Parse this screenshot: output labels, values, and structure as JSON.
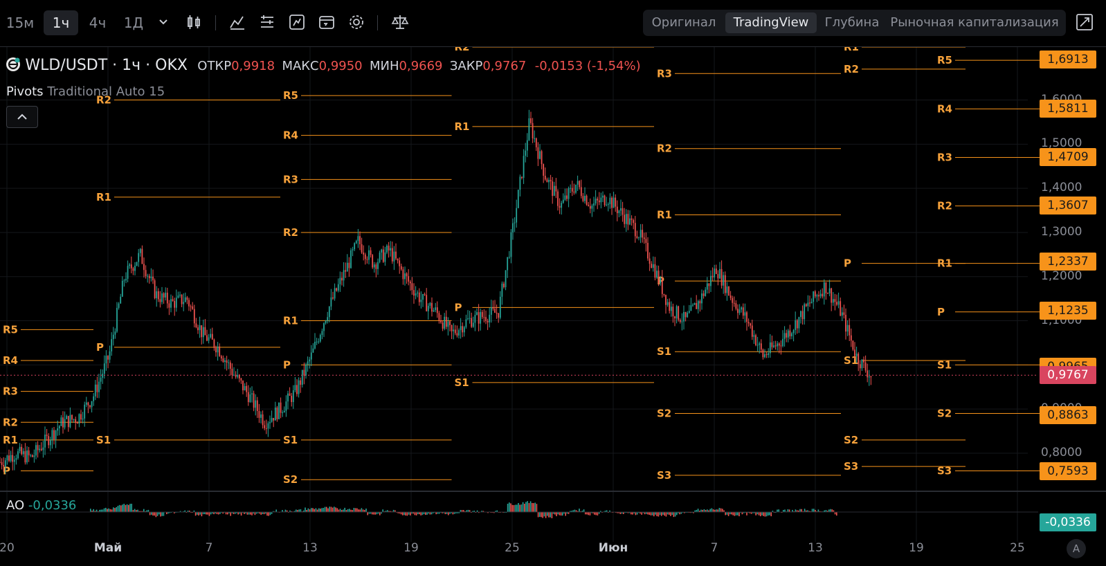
{
  "toolbar": {
    "timeframes": [
      "15м",
      "1ч",
      "4ч",
      "1Д"
    ],
    "active_timeframe": "1ч",
    "tools": [
      "chevron-down-icon",
      "candles-icon",
      "indicators-icon",
      "layout-icon",
      "drawing-icon",
      "replay-icon",
      "gear-icon",
      "scale-icon"
    ],
    "views": [
      "Оригинал",
      "TradingView",
      "Глубина",
      "Рыночная капитализация"
    ],
    "active_view": "TradingView"
  },
  "legend": {
    "symbol": "WLD/USDT · 1ч · OKX",
    "open_label": "ОТКР",
    "open": "0,9918",
    "high_label": "МАКС",
    "high": "0,9950",
    "low_label": "МИН",
    "low": "0,9669",
    "close_label": "ЗАКР",
    "close": "0,9767",
    "change": "-0,0153 (-1,54%)",
    "indicator_name": "Pivots",
    "indicator_params": "Traditional Auto 15"
  },
  "oscillator": {
    "name": "AO",
    "value": "-0,0336"
  },
  "price_axis": {
    "ticks": [
      "1,6000",
      "1,5000",
      "1,4000",
      "1,3000",
      "1,2000",
      "1,1000",
      "0,9000",
      "0,8000"
    ],
    "tags": [
      {
        "text": "1,6913",
        "color": "#f7931a"
      },
      {
        "text": "1,5811",
        "color": "#f7931a"
      },
      {
        "text": "1,4709",
        "color": "#f7931a"
      },
      {
        "text": "1,3607",
        "color": "#f7931a"
      },
      {
        "text": "1,2337",
        "color": "#f7931a"
      },
      {
        "text": "1,1235",
        "color": "#f7931a"
      },
      {
        "text": "0,9965",
        "color": "#f7931a"
      },
      {
        "text": "0,9767",
        "color": "#d9455f"
      },
      {
        "text": "0,8863",
        "color": "#f7931a"
      },
      {
        "text": "0,7593",
        "color": "#f7931a"
      }
    ],
    "ao_tag": {
      "text": "-0,0336",
      "color": "#26a69a"
    }
  },
  "time_axis": {
    "labels": [
      {
        "text": "20",
        "bold": false
      },
      {
        "text": "Май",
        "bold": true
      },
      {
        "text": "7",
        "bold": false
      },
      {
        "text": "13",
        "bold": false
      },
      {
        "text": "19",
        "bold": false
      },
      {
        "text": "25",
        "bold": false
      },
      {
        "text": "Июн",
        "bold": true
      },
      {
        "text": "7",
        "bold": false
      },
      {
        "text": "13",
        "bold": false
      },
      {
        "text": "19",
        "bold": false
      },
      {
        "text": "25",
        "bold": false
      }
    ],
    "auto_label": "A"
  },
  "colors": {
    "up": "#26a69a",
    "down": "#ef5350",
    "pivot": "#f7931a",
    "current_price": "#d9455f"
  },
  "chart_data": {
    "type": "candlestick",
    "symbol": "WLD/USDT",
    "interval": "1ч",
    "ylim": [
      0.72,
      1.72
    ],
    "x_start": "2024-04-20",
    "x_end": "2024-06-25",
    "price_path": [
      [
        "2024-04-20",
        0.78
      ],
      [
        "2024-04-21",
        0.8
      ],
      [
        "2024-04-22",
        0.79
      ],
      [
        "2024-04-23",
        0.83
      ],
      [
        "2024-04-24",
        0.87
      ],
      [
        "2024-04-25",
        0.88
      ],
      [
        "2024-04-26",
        0.93
      ],
      [
        "2024-04-27",
        1.02
      ],
      [
        "2024-04-28",
        1.2
      ],
      [
        "2024-04-29",
        1.25
      ],
      [
        "2024-04-30",
        1.16
      ],
      [
        "2024-05-01",
        1.14
      ],
      [
        "2024-05-02",
        1.15
      ],
      [
        "2024-05-03",
        1.07
      ],
      [
        "2024-05-04",
        1.04
      ],
      [
        "2024-05-05",
        0.98
      ],
      [
        "2024-05-06",
        0.93
      ],
      [
        "2024-05-07",
        0.87
      ],
      [
        "2024-05-08",
        0.9
      ],
      [
        "2024-05-09",
        0.94
      ],
      [
        "2024-05-10",
        1.02
      ],
      [
        "2024-05-11",
        1.12
      ],
      [
        "2024-05-12",
        1.2
      ],
      [
        "2024-05-13",
        1.28
      ],
      [
        "2024-05-14",
        1.23
      ],
      [
        "2024-05-15",
        1.26
      ],
      [
        "2024-05-16",
        1.2
      ],
      [
        "2024-05-17",
        1.15
      ],
      [
        "2024-05-18",
        1.12
      ],
      [
        "2024-05-19",
        1.07
      ],
      [
        "2024-05-20",
        1.1
      ],
      [
        "2024-05-21",
        1.11
      ],
      [
        "2024-05-22",
        1.12
      ],
      [
        "2024-05-23",
        1.32
      ],
      [
        "2024-05-24",
        1.55
      ],
      [
        "2024-05-25",
        1.43
      ],
      [
        "2024-05-26",
        1.36
      ],
      [
        "2024-05-27",
        1.41
      ],
      [
        "2024-05-28",
        1.36
      ],
      [
        "2024-05-29",
        1.38
      ],
      [
        "2024-05-30",
        1.34
      ],
      [
        "2024-05-31",
        1.3
      ],
      [
        "2024-06-01",
        1.22
      ],
      [
        "2024-06-02",
        1.13
      ],
      [
        "2024-06-03",
        1.1
      ],
      [
        "2024-06-04",
        1.15
      ],
      [
        "2024-06-05",
        1.22
      ],
      [
        "2024-06-06",
        1.15
      ],
      [
        "2024-06-07",
        1.1
      ],
      [
        "2024-06-08",
        1.02
      ],
      [
        "2024-06-09",
        1.05
      ],
      [
        "2024-06-10",
        1.09
      ],
      [
        "2024-06-11",
        1.14
      ],
      [
        "2024-06-12",
        1.18
      ],
      [
        "2024-06-13",
        1.12
      ],
      [
        "2024-06-14",
        1.02
      ],
      [
        "2024-06-15",
        0.97
      ]
    ],
    "pivot_levels": [
      {
        "start": "2024-04-20",
        "end": "2024-04-26",
        "levels": {
          "R5": 1.08,
          "R4": 1.01,
          "R3": 0.94,
          "R2": 0.87,
          "R1": 0.83,
          "P": 0.76
        }
      },
      {
        "start": "2024-04-26",
        "end": "2024-05-08",
        "levels": {
          "R2": 1.6,
          "R1": 1.38,
          "P": 1.04,
          "S1": 0.83
        }
      },
      {
        "start": "2024-05-08",
        "end": "2024-05-19",
        "levels": {
          "R5": 1.61,
          "R4": 1.52,
          "R3": 1.42,
          "R2": 1.3,
          "R1": 1.1,
          "P": 1.0,
          "S1": 0.83,
          "S2": 0.74
        }
      },
      {
        "start": "2024-05-19",
        "end": "2024-06-01",
        "levels": {
          "R2": 1.72,
          "R1": 1.54,
          "P": 1.13,
          "S1": 0.96
        }
      },
      {
        "start": "2024-06-01",
        "end": "2024-06-13",
        "levels": {
          "R3": 1.66,
          "R2": 1.49,
          "R1": 1.34,
          "P": 1.19,
          "S1": 1.03,
          "S2": 0.89,
          "S3": 0.75
        }
      },
      {
        "start": "2024-06-13",
        "end": "2024-06-21",
        "levels": {
          "R1": 1.72,
          "R2": 1.67,
          "P": 1.23,
          "S1": 1.01,
          "S2": 0.83,
          "S3": 0.77
        }
      },
      {
        "start": "2024-06-19",
        "end": "2024-06-27",
        "levels": {
          "R5": 1.69,
          "R4": 1.58,
          "R3": 1.47,
          "R2": 1.36,
          "R1": 1.23,
          "P": 1.12,
          "S1": 1.0,
          "S2": 0.89,
          "S3": 0.76
        }
      }
    ],
    "ao_series_note": "",
    "current_price": 0.9767
  }
}
